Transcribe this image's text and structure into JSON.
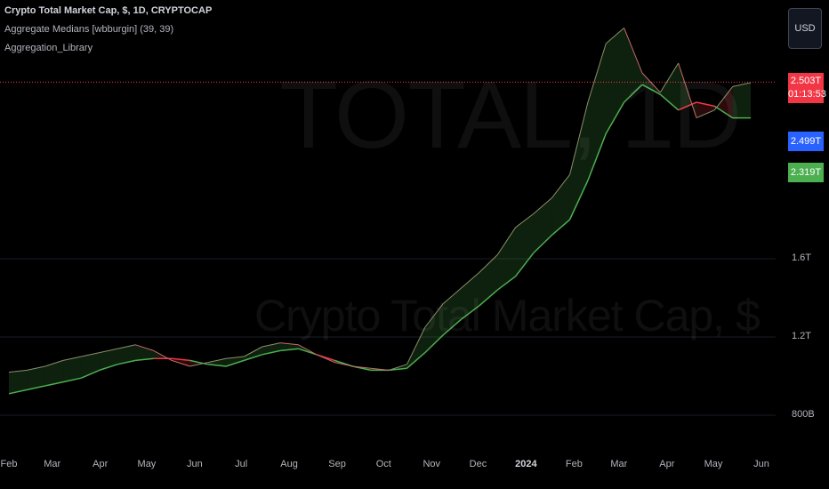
{
  "legend": {
    "main": "Crypto Total Market Cap, $, 1D, CRYPTOCAP",
    "indicator": "Aggregate Medians [wbburgin] (39, 39)",
    "library": "Aggregation_Library"
  },
  "watermark": {
    "symbol": "TOTAL, 1D",
    "name": "Crypto Total Market Cap, $"
  },
  "currency_button": "USD",
  "badges": {
    "last_price": "2.503T",
    "countdown": "01:13:53",
    "median_blue": "2.499T",
    "median_green": "2.319T"
  },
  "colors": {
    "up": "#26a69a",
    "median_up": "#4caf50",
    "median_down": "#f23645",
    "last_price": "#f23645",
    "median_blue_badge": "#2962ff",
    "median_green_badge": "#4caf50",
    "background": "#000000"
  },
  "chart_data": {
    "type": "line",
    "x_ticks": [
      "Feb",
      "Mar",
      "Apr",
      "May",
      "Jun",
      "Jul",
      "Aug",
      "Sep",
      "Oct",
      "Nov",
      "Dec",
      "2024",
      "Feb",
      "Mar",
      "Apr",
      "May",
      "Jun"
    ],
    "y_ticks": [
      "800B",
      "1.2T",
      "1.6T"
    ],
    "y_tick_values": [
      0.8,
      1.2,
      1.6
    ],
    "x_tick_days": [
      0,
      28,
      59,
      89,
      120,
      150,
      181,
      212,
      242,
      273,
      303,
      334,
      365,
      394,
      425,
      455,
      486
    ],
    "series": [
      {
        "values": [
          1.02,
          1.03,
          1.05,
          1.08,
          1.1,
          1.12,
          1.14,
          1.16,
          1.13,
          1.08,
          1.05,
          1.07,
          1.09,
          1.1,
          1.15,
          1.17,
          1.16,
          1.11,
          1.07,
          1.05,
          1.04,
          1.03,
          1.06,
          1.25,
          1.37,
          1.45,
          1.53,
          1.62,
          1.76,
          1.83,
          1.91,
          2.03,
          2.4,
          2.7,
          2.78,
          2.55,
          2.45,
          2.6,
          2.32,
          2.36,
          2.48,
          2.5
        ]
      },
      {
        "values": [
          0.91,
          0.93,
          0.95,
          0.97,
          0.99,
          1.03,
          1.06,
          1.08,
          1.09,
          1.09,
          1.08,
          1.06,
          1.05,
          1.08,
          1.11,
          1.13,
          1.14,
          1.11,
          1.08,
          1.05,
          1.03,
          1.03,
          1.04,
          1.12,
          1.21,
          1.29,
          1.36,
          1.44,
          1.51,
          1.63,
          1.72,
          1.8,
          2.0,
          2.24,
          2.4,
          2.49,
          2.44,
          2.36,
          2.4,
          2.38,
          2.32,
          2.32
        ]
      }
    ],
    "last_price_line": 2.503
  }
}
